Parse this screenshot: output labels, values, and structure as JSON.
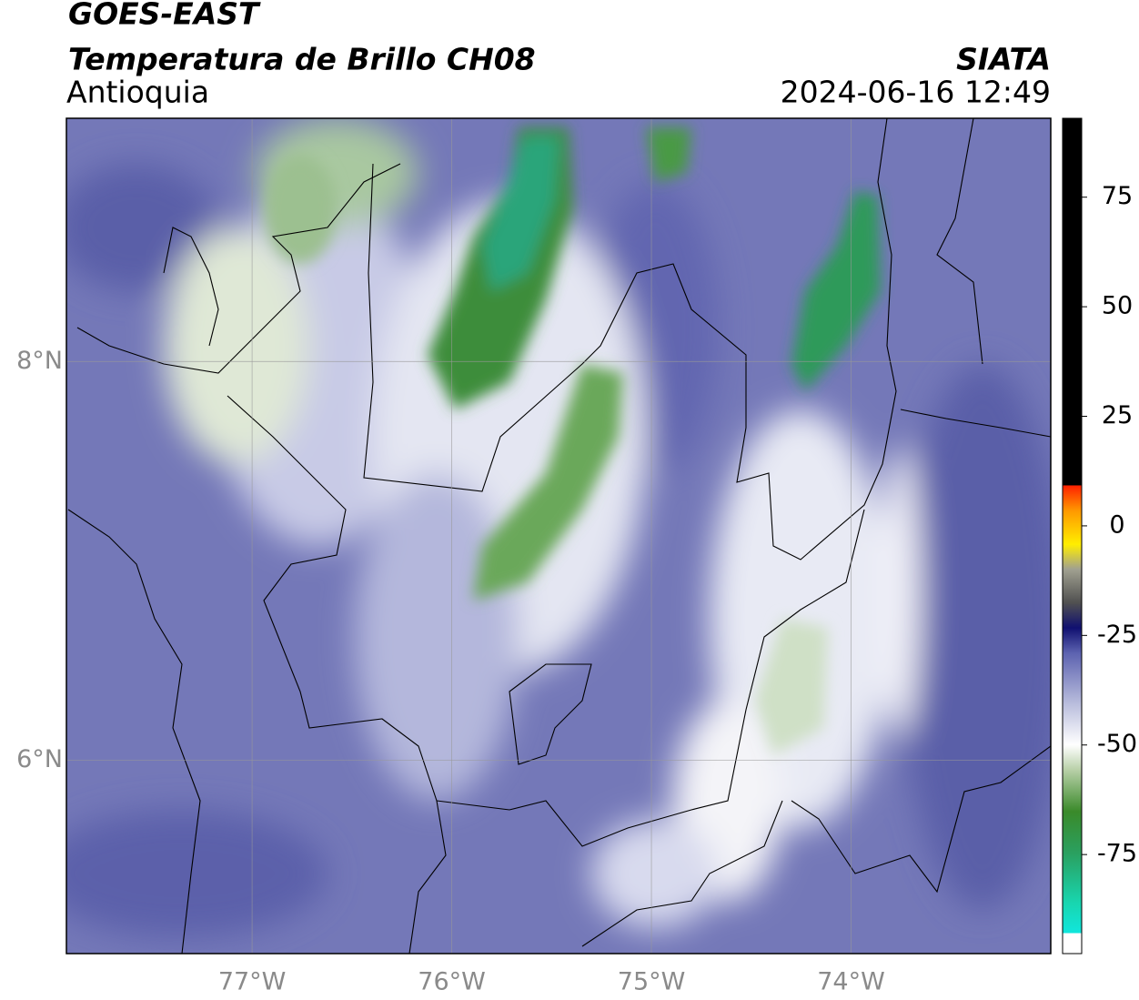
{
  "header": {
    "title": "GOES-EAST",
    "subtitle": "Temperatura de Brillo CH08",
    "region": "Antioquia",
    "source": "SIATA",
    "datetime": "2024-06-16 12:49"
  },
  "chart_data": {
    "type": "map",
    "xlim": [
      -77.93,
      -73.0
    ],
    "ylim": [
      5.03,
      9.22
    ],
    "xticks": [
      {
        "value": -77,
        "label": "77°W"
      },
      {
        "value": -76,
        "label": "76°W"
      },
      {
        "value": -75,
        "label": "75°W"
      },
      {
        "value": -74,
        "label": "74°W"
      }
    ],
    "yticks": [
      {
        "value": 6,
        "label": "6°N"
      },
      {
        "value": 8,
        "label": "8°N"
      }
    ],
    "grid": true,
    "colorbar": {
      "lim": [
        -97.6,
        93
      ],
      "ticks": [
        -75,
        -50,
        -25,
        0,
        25,
        50,
        75
      ]
    }
  }
}
